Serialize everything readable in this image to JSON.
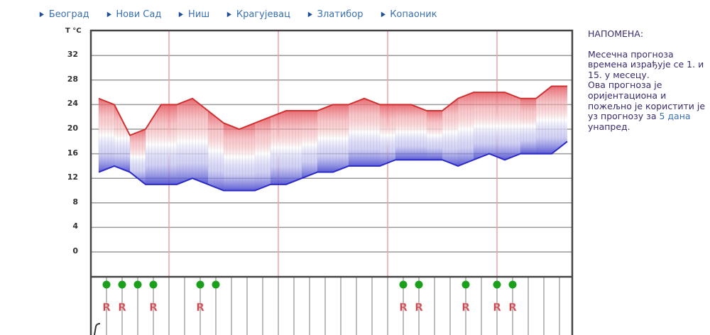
{
  "nav": {
    "items": [
      {
        "label": "Београд"
      },
      {
        "label": "Нови Сад"
      },
      {
        "label": "Ниш"
      },
      {
        "label": "Крагујевац"
      },
      {
        "label": "Златибор"
      },
      {
        "label": "Копаоник"
      }
    ]
  },
  "note": {
    "title": "НАПОМЕНА:",
    "text_1": "Месечна прогноза времена израђује се 1. и 15. у месецу.",
    "text_2": "Ова прогноза је оријентациона и пожељно је користити је уз прогнозу за ",
    "link": "5 дана",
    "text_3": " унапред."
  },
  "colors": {
    "max_line": "#d03030",
    "min_line": "#2a2ac8",
    "week_separator": "#f0a0a8",
    "gridline": "#9a9a9a",
    "frame": "#444444",
    "precip_dot": "#1aa01a",
    "r_marker": "#c84850",
    "nav_link": "#3a6fb0"
  },
  "chart_data": {
    "type": "area",
    "title": "",
    "xlabel": "",
    "ylabel": "T °C",
    "ylim": [
      -4,
      36
    ],
    "yticks": [
      32,
      28,
      24,
      20,
      16,
      12,
      8,
      4,
      0
    ],
    "grid": true,
    "days": 31,
    "week_separators_after_day": [
      4,
      11,
      18,
      25
    ],
    "series": [
      {
        "name": "max_temperature",
        "values": [
          25,
          24,
          19,
          20,
          24,
          24,
          25,
          23,
          21,
          20,
          21,
          22,
          23,
          23,
          23,
          24,
          24,
          25,
          24,
          24,
          24,
          23,
          23,
          25,
          26,
          26,
          26,
          25,
          25,
          27,
          27
        ]
      },
      {
        "name": "min_temperature",
        "values": [
          13,
          14,
          13,
          11,
          11,
          11,
          12,
          11,
          10,
          10,
          10,
          11,
          11,
          12,
          13,
          13,
          14,
          14,
          14,
          15,
          15,
          15,
          15,
          14,
          15,
          16,
          15,
          16,
          16,
          16,
          18
        ]
      }
    ],
    "precipitation_days": [
      1,
      2,
      3,
      4,
      7,
      8,
      20,
      21,
      24,
      26,
      27
    ],
    "r_marker_days": [
      1,
      2,
      4,
      7,
      20,
      21,
      24,
      26,
      27
    ],
    "r_marker_symbol": "R"
  }
}
